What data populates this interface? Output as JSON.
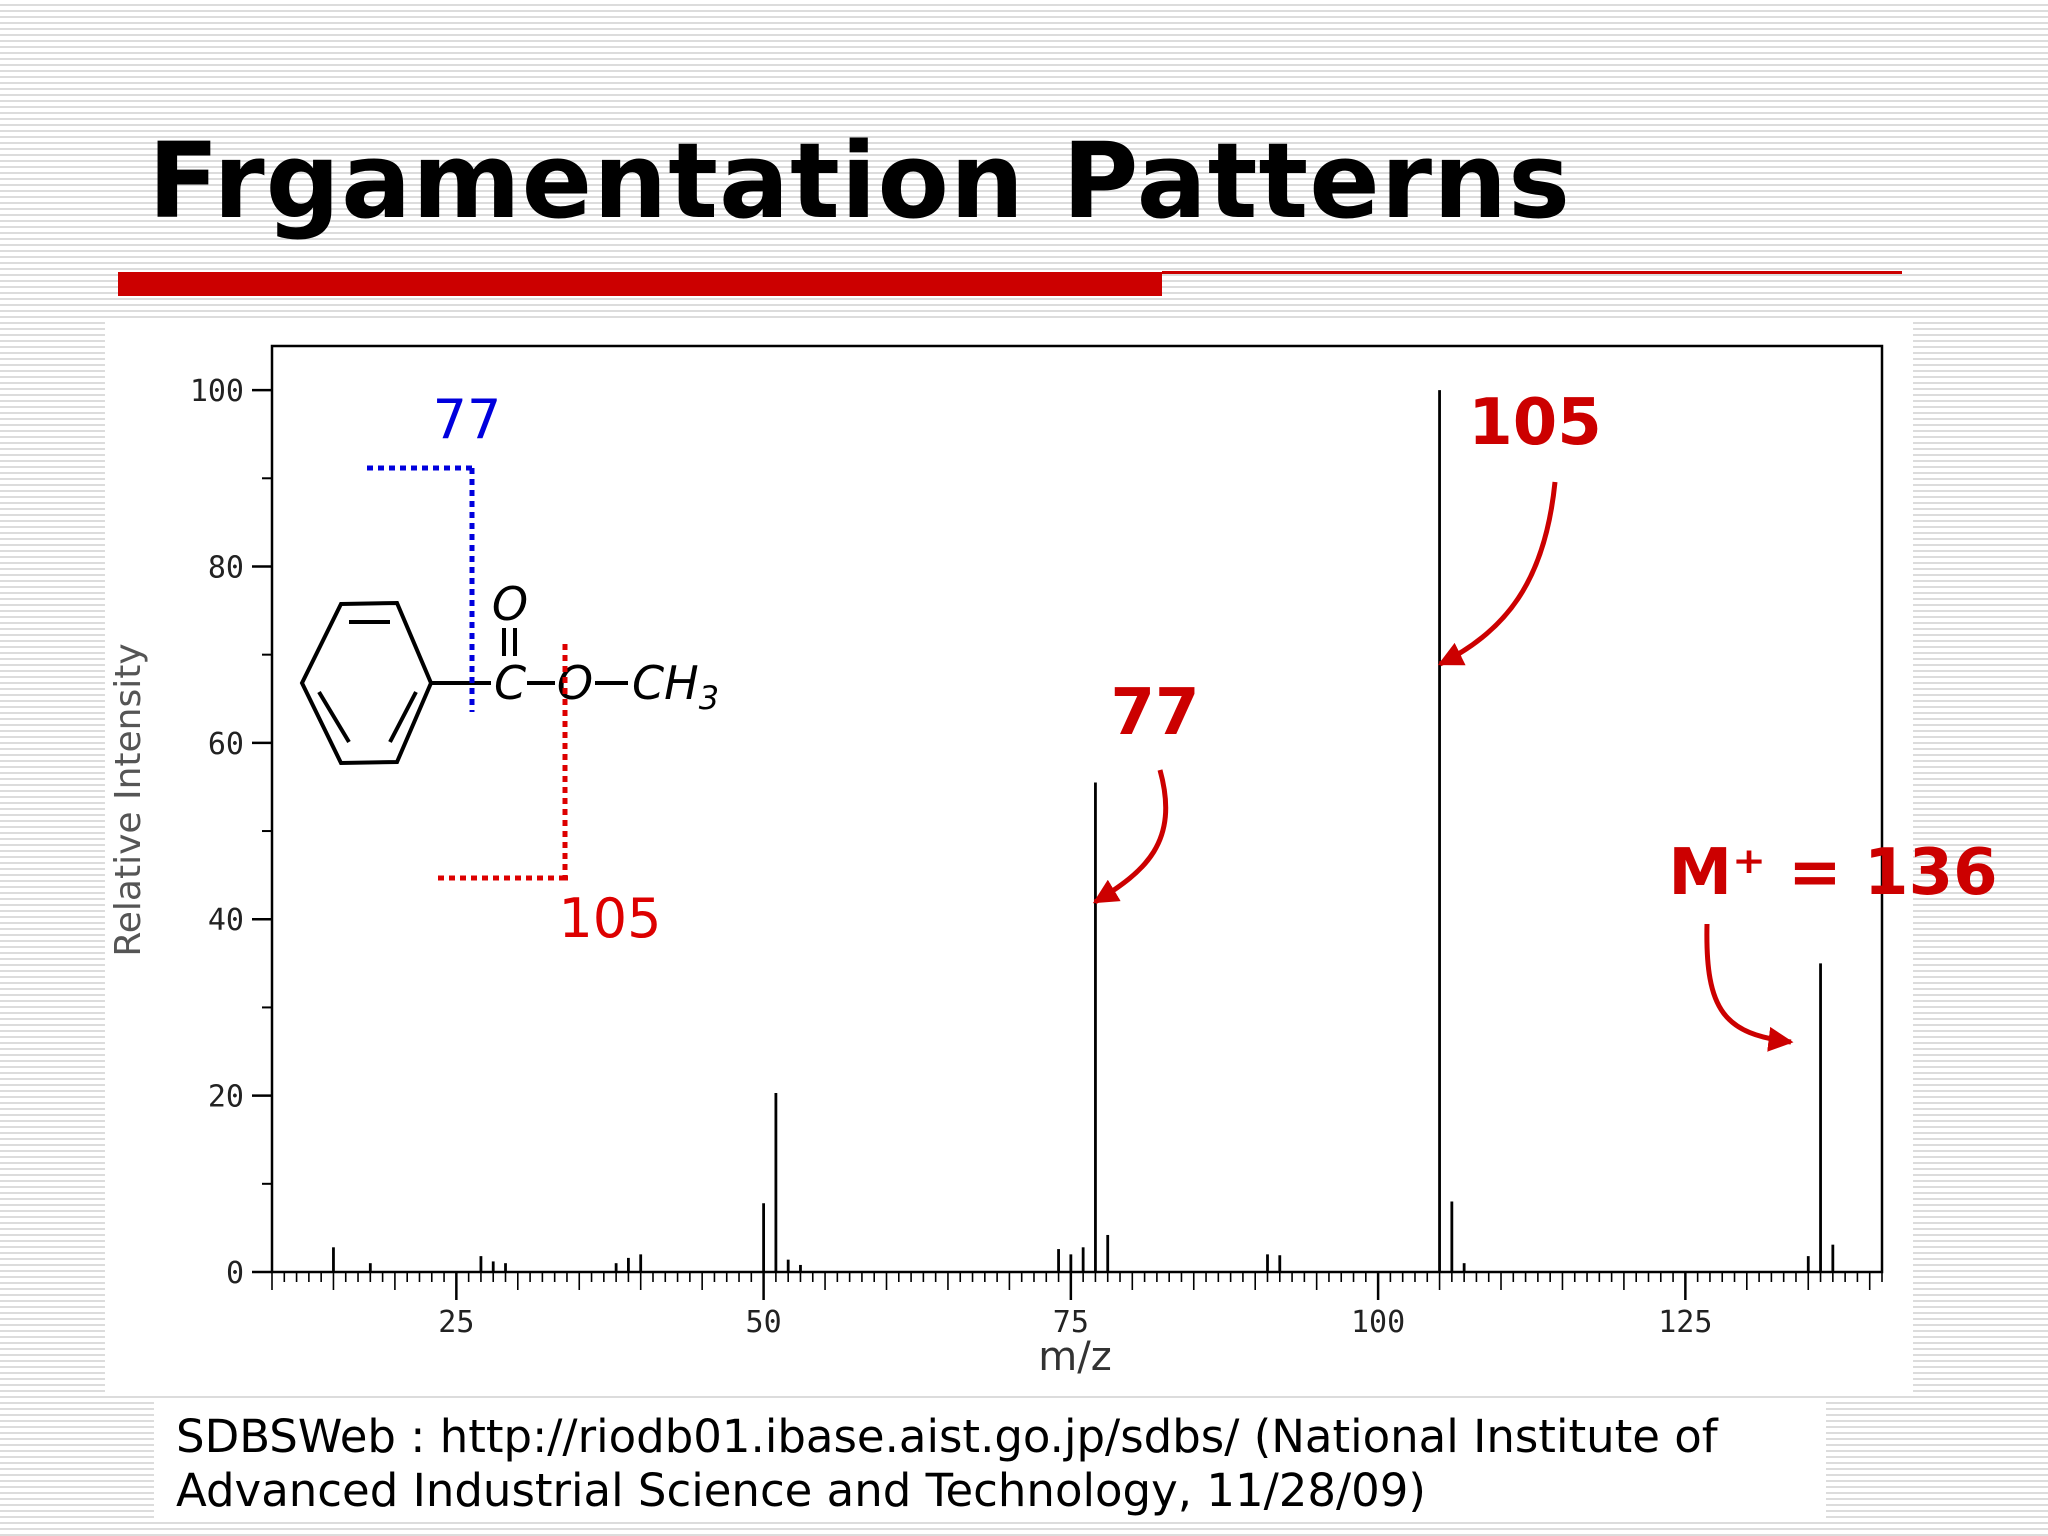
{
  "slide": {
    "title": "Frgamentation Patterns",
    "source_line1": "SDBSWeb : http://riodb01.ibase.aist.go.jp/sdbs/ (National Institute of",
    "source_line2": "Advanced Industrial Science and Technology, 11/28/09)"
  },
  "colors": {
    "accent": "#cc0000",
    "blue": "#0000dd",
    "peak": "#000000"
  },
  "chart_data": {
    "type": "bar",
    "title": "",
    "xlabel": "m/z",
    "ylabel": "Relative Intensity",
    "xlim": [
      10,
      141
    ],
    "ylim": [
      0,
      105
    ],
    "x_ticks": [
      25,
      50,
      75,
      100,
      125
    ],
    "y_ticks": [
      0,
      20,
      40,
      60,
      80,
      100
    ],
    "peaks": [
      {
        "mz": 15,
        "intensity": 2.8
      },
      {
        "mz": 18,
        "intensity": 1.0
      },
      {
        "mz": 27,
        "intensity": 1.8
      },
      {
        "mz": 28,
        "intensity": 1.2
      },
      {
        "mz": 29,
        "intensity": 1.0
      },
      {
        "mz": 38,
        "intensity": 1.0
      },
      {
        "mz": 39,
        "intensity": 1.6
      },
      {
        "mz": 40,
        "intensity": 2.0
      },
      {
        "mz": 50,
        "intensity": 7.8
      },
      {
        "mz": 51,
        "intensity": 20.3
      },
      {
        "mz": 52,
        "intensity": 1.4
      },
      {
        "mz": 53,
        "intensity": 0.8
      },
      {
        "mz": 74,
        "intensity": 2.6
      },
      {
        "mz": 75,
        "intensity": 2.0
      },
      {
        "mz": 76,
        "intensity": 2.8
      },
      {
        "mz": 77,
        "intensity": 55.5
      },
      {
        "mz": 78,
        "intensity": 4.2
      },
      {
        "mz": 91,
        "intensity": 2.0
      },
      {
        "mz": 92,
        "intensity": 1.9
      },
      {
        "mz": 105,
        "intensity": 100
      },
      {
        "mz": 106,
        "intensity": 8.0
      },
      {
        "mz": 107,
        "intensity": 1.0
      },
      {
        "mz": 135,
        "intensity": 1.8
      },
      {
        "mz": 136,
        "intensity": 35.0
      },
      {
        "mz": 137,
        "intensity": 3.1
      }
    ],
    "annotations": {
      "peak_105": "105",
      "peak_77": "77",
      "molecular_ion": "M⁺ = 136",
      "fragment_77": "77",
      "fragment_105": "105"
    },
    "structure": {
      "carbonyl_o": "O",
      "carbonyl_c": "C",
      "ester_o": "O",
      "methyl": "CH",
      "methyl_sub": "3"
    }
  }
}
